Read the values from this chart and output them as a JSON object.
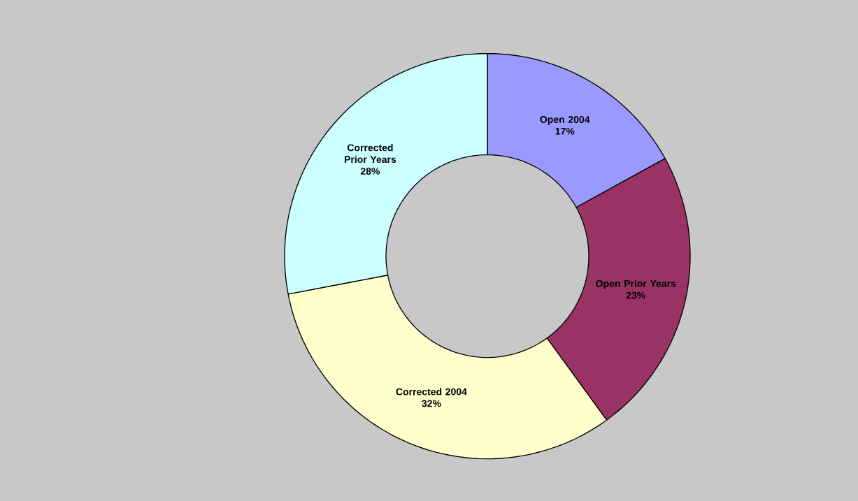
{
  "chart_data": {
    "type": "donut",
    "categories": [
      "Open 2004",
      "Open Prior Years",
      "Corrected 2004",
      "Corrected  Prior Years"
    ],
    "values": [
      17,
      23,
      32,
      28
    ],
    "colors": [
      "#9999ff",
      "#993366",
      "#ffffcc",
      "#ccffff"
    ],
    "value_labels": [
      "17%",
      "23%",
      "32%",
      "28%"
    ]
  }
}
